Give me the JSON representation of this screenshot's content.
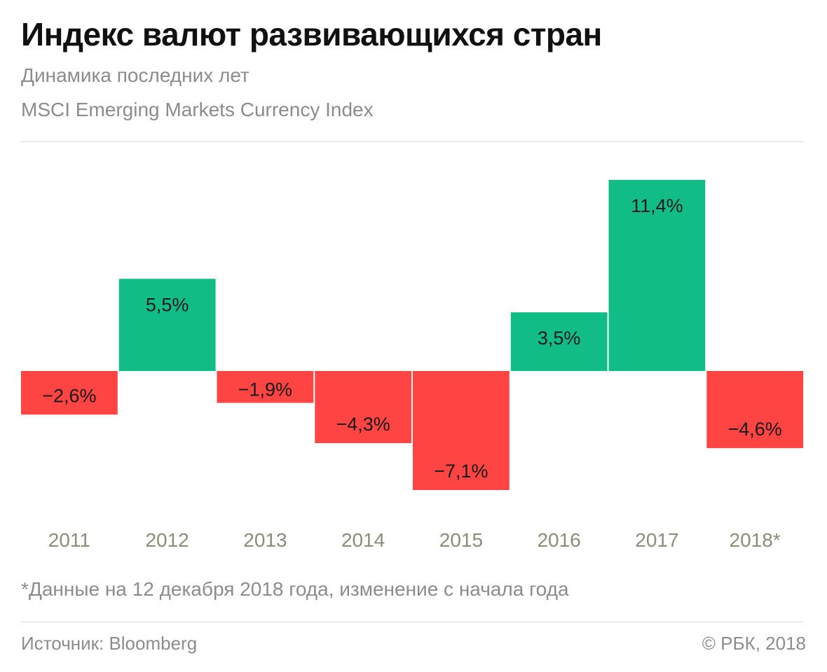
{
  "header": {
    "title": "Индекс валют развивающихся стран",
    "subtitle_1": "Динамика последних лет",
    "subtitle_2": "MSCI Emerging Markets Currency Index"
  },
  "chart_data": {
    "type": "bar",
    "title": "Индекс валют развивающихся стран",
    "subtitle": "MSCI Emerging Markets Currency Index",
    "categories": [
      "2011",
      "2012",
      "2013",
      "2014",
      "2015",
      "2016",
      "2017",
      "2018*"
    ],
    "values": [
      -2.6,
      5.5,
      -1.9,
      -4.3,
      -7.1,
      3.5,
      11.4,
      -4.6
    ],
    "value_labels": [
      "−2,6%",
      "5,5%",
      "−1,9%",
      "−4,3%",
      "−7,1%",
      "3,5%",
      "11,4%",
      "−4,6%"
    ],
    "unit": "%",
    "xlabel": "",
    "ylabel": "",
    "ylim": [
      -7.1,
      11.4
    ],
    "grid": false,
    "legend": "none",
    "colors": {
      "positive": "#12bc87",
      "negative": "#ff4444"
    }
  },
  "footer": {
    "footnote": "*Данные на 12 декабря 2018 года, изменение с начала года",
    "source": "Источник: Bloomberg",
    "copyright": "© РБК, 2018"
  }
}
